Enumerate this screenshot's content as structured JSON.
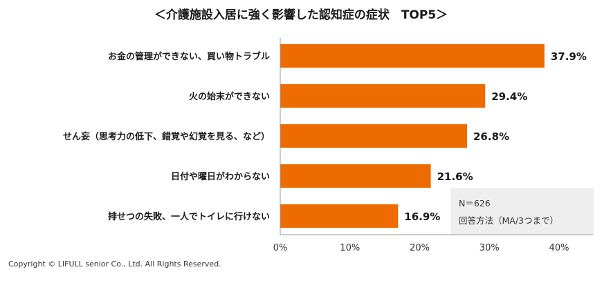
{
  "chart_data": {
    "type": "bar",
    "orientation": "horizontal",
    "title": "＜介護施設入居に強く影響した認知症の症状　TOP5＞",
    "categories": [
      "お金の管理ができない、買い物トラブル",
      "火の始末ができない",
      "せん妄（思考力の低下、錯覚や幻覚を見る、など）",
      "日付や曜日がわからない",
      "排せつの失敗、一人でトイレに行けない"
    ],
    "values": [
      37.9,
      29.4,
      26.8,
      21.6,
      16.9
    ],
    "value_labels": [
      "37.9%",
      "29.4%",
      "26.8%",
      "21.6%",
      "16.9%"
    ],
    "xlim": [
      0,
      40
    ],
    "xticks": [
      "0%",
      "10%",
      "20%",
      "30%",
      "40%"
    ],
    "xlabel": "",
    "ylabel": "",
    "grid": false,
    "colors": {
      "bar": "#ed6b00",
      "note_bg": "#eeeeee",
      "axis": "#999999"
    }
  },
  "note": {
    "line1": "N＝626",
    "line2": "回答方法（MA/3つまで）"
  },
  "copyright": "Copyright © LIFULL senior Co., Ltd. All Rights Reserved."
}
